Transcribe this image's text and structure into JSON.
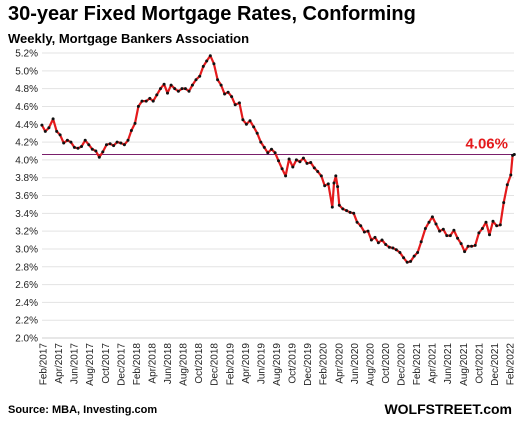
{
  "chart_data": {
    "type": "line",
    "title": "30-year Fixed Mortgage Rates, Conforming",
    "subtitle": "Weekly, Mortgage Bankers Association",
    "source": "Source: MBA, Investing.com",
    "brand": "WOLFSTREET.com",
    "ylim": [
      2.0,
      5.2
    ],
    "yticks": [
      "2.0%",
      "2.2%",
      "2.4%",
      "2.6%",
      "2.8%",
      "3.0%",
      "3.2%",
      "3.4%",
      "3.6%",
      "3.8%",
      "4.0%",
      "4.2%",
      "4.4%",
      "4.6%",
      "4.8%",
      "5.0%",
      "5.2%"
    ],
    "xticks": [
      "Feb/2017",
      "Apr/2017",
      "Jun/2017",
      "Aug/2017",
      "Oct/2017",
      "Dec/2017",
      "Feb/2018",
      "Apr/2018",
      "Jun/2018",
      "Aug/2018",
      "Oct/2018",
      "Dec/2018",
      "Feb/2019",
      "Apr/2019",
      "Jun/2019",
      "Aug/2019",
      "Oct/2019",
      "Dec/2019",
      "Feb/2020",
      "Apr/2020",
      "Jun/2020",
      "Aug/2020",
      "Oct/2020",
      "Dec/2020",
      "Feb/2021",
      "Apr/2021",
      "Jun/2021",
      "Aug/2021",
      "Oct/2021",
      "Dec/2021",
      "Feb/2022"
    ],
    "grid": true,
    "reference_line": {
      "value": 4.06,
      "label": "4.06%",
      "color": "#7a1f6b"
    },
    "series": [
      {
        "color": "#e41a1c",
        "marker_color": "#111111",
        "points": [
          [
            "2017-01-27",
            4.39
          ],
          [
            "2017-02-10",
            4.32
          ],
          [
            "2017-02-24",
            4.36
          ],
          [
            "2017-03-10",
            4.46
          ],
          [
            "2017-03-24",
            4.32
          ],
          [
            "2017-04-07",
            4.28
          ],
          [
            "2017-04-21",
            4.19
          ],
          [
            "2017-05-05",
            4.22
          ],
          [
            "2017-05-19",
            4.2
          ],
          [
            "2017-06-02",
            4.14
          ],
          [
            "2017-06-16",
            4.13
          ],
          [
            "2017-06-30",
            4.15
          ],
          [
            "2017-07-14",
            4.22
          ],
          [
            "2017-07-28",
            4.17
          ],
          [
            "2017-08-11",
            4.12
          ],
          [
            "2017-08-25",
            4.1
          ],
          [
            "2017-09-08",
            4.03
          ],
          [
            "2017-09-22",
            4.09
          ],
          [
            "2017-10-06",
            4.17
          ],
          [
            "2017-10-20",
            4.18
          ],
          [
            "2017-11-03",
            4.16
          ],
          [
            "2017-11-17",
            4.2
          ],
          [
            "2017-12-01",
            4.19
          ],
          [
            "2017-12-15",
            4.17
          ],
          [
            "2017-12-29",
            4.22
          ],
          [
            "2018-01-12",
            4.33
          ],
          [
            "2018-01-26",
            4.41
          ],
          [
            "2018-02-09",
            4.6
          ],
          [
            "2018-02-23",
            4.66
          ],
          [
            "2018-03-09",
            4.66
          ],
          [
            "2018-03-23",
            4.69
          ],
          [
            "2018-04-06",
            4.66
          ],
          [
            "2018-04-20",
            4.73
          ],
          [
            "2018-05-04",
            4.8
          ],
          [
            "2018-05-18",
            4.85
          ],
          [
            "2018-06-01",
            4.75
          ],
          [
            "2018-06-15",
            4.84
          ],
          [
            "2018-06-29",
            4.8
          ],
          [
            "2018-07-13",
            4.77
          ],
          [
            "2018-07-27",
            4.8
          ],
          [
            "2018-08-10",
            4.8
          ],
          [
            "2018-08-24",
            4.77
          ],
          [
            "2018-09-07",
            4.84
          ],
          [
            "2018-09-21",
            4.9
          ],
          [
            "2018-10-05",
            4.94
          ],
          [
            "2018-10-19",
            5.05
          ],
          [
            "2018-11-02",
            5.11
          ],
          [
            "2018-11-16",
            5.17
          ],
          [
            "2018-11-30",
            5.08
          ],
          [
            "2018-12-14",
            4.9
          ],
          [
            "2018-12-28",
            4.84
          ],
          [
            "2019-01-11",
            4.74
          ],
          [
            "2019-01-25",
            4.76
          ],
          [
            "2019-02-08",
            4.71
          ],
          [
            "2019-02-22",
            4.62
          ],
          [
            "2019-03-08",
            4.64
          ],
          [
            "2019-03-22",
            4.45
          ],
          [
            "2019-04-05",
            4.4
          ],
          [
            "2019-04-19",
            4.44
          ],
          [
            "2019-05-03",
            4.37
          ],
          [
            "2019-05-17",
            4.3
          ],
          [
            "2019-05-31",
            4.2
          ],
          [
            "2019-06-14",
            4.14
          ],
          [
            "2019-06-28",
            4.08
          ],
          [
            "2019-07-12",
            4.12
          ],
          [
            "2019-07-26",
            4.08
          ],
          [
            "2019-08-09",
            3.99
          ],
          [
            "2019-08-23",
            3.9
          ],
          [
            "2019-09-06",
            3.82
          ],
          [
            "2019-09-20",
            4.01
          ],
          [
            "2019-10-04",
            3.92
          ],
          [
            "2019-10-18",
            4.0
          ],
          [
            "2019-11-01",
            3.98
          ],
          [
            "2019-11-15",
            4.02
          ],
          [
            "2019-11-29",
            3.96
          ],
          [
            "2019-12-13",
            3.97
          ],
          [
            "2019-12-27",
            3.91
          ],
          [
            "2020-01-10",
            3.87
          ],
          [
            "2020-01-24",
            3.82
          ],
          [
            "2020-02-07",
            3.71
          ],
          [
            "2020-02-21",
            3.73
          ],
          [
            "2020-03-06",
            3.47
          ],
          [
            "2020-03-13",
            3.74
          ],
          [
            "2020-03-20",
            3.82
          ],
          [
            "2020-03-27",
            3.7
          ],
          [
            "2020-04-03",
            3.49
          ],
          [
            "2020-04-17",
            3.45
          ],
          [
            "2020-05-01",
            3.43
          ],
          [
            "2020-05-15",
            3.41
          ],
          [
            "2020-05-29",
            3.4
          ],
          [
            "2020-06-12",
            3.3
          ],
          [
            "2020-06-26",
            3.26
          ],
          [
            "2020-07-10",
            3.19
          ],
          [
            "2020-07-24",
            3.2
          ],
          [
            "2020-08-07",
            3.1
          ],
          [
            "2020-08-21",
            3.13
          ],
          [
            "2020-09-04",
            3.07
          ],
          [
            "2020-09-18",
            3.1
          ],
          [
            "2020-10-02",
            3.05
          ],
          [
            "2020-10-16",
            3.02
          ],
          [
            "2020-10-30",
            3.01
          ],
          [
            "2020-11-13",
            2.99
          ],
          [
            "2020-11-27",
            2.96
          ],
          [
            "2020-12-11",
            2.9
          ],
          [
            "2020-12-25",
            2.85
          ],
          [
            "2021-01-08",
            2.86
          ],
          [
            "2021-01-22",
            2.92
          ],
          [
            "2021-02-05",
            2.96
          ],
          [
            "2021-02-19",
            3.08
          ],
          [
            "2021-03-05",
            3.23
          ],
          [
            "2021-03-19",
            3.3
          ],
          [
            "2021-04-02",
            3.36
          ],
          [
            "2021-04-16",
            3.28
          ],
          [
            "2021-04-30",
            3.2
          ],
          [
            "2021-05-14",
            3.22
          ],
          [
            "2021-05-28",
            3.15
          ],
          [
            "2021-06-11",
            3.15
          ],
          [
            "2021-06-25",
            3.21
          ],
          [
            "2021-07-09",
            3.12
          ],
          [
            "2021-07-23",
            3.06
          ],
          [
            "2021-08-06",
            2.97
          ],
          [
            "2021-08-20",
            3.03
          ],
          [
            "2021-09-03",
            3.03
          ],
          [
            "2021-09-17",
            3.04
          ],
          [
            "2021-10-01",
            3.18
          ],
          [
            "2021-10-15",
            3.23
          ],
          [
            "2021-10-29",
            3.3
          ],
          [
            "2021-11-12",
            3.16
          ],
          [
            "2021-11-26",
            3.31
          ],
          [
            "2021-12-10",
            3.26
          ],
          [
            "2021-12-24",
            3.27
          ],
          [
            "2022-01-07",
            3.52
          ],
          [
            "2022-01-21",
            3.72
          ],
          [
            "2022-02-04",
            3.83
          ],
          [
            "2022-02-11",
            4.05
          ],
          [
            "2022-02-18",
            4.06
          ]
        ]
      }
    ]
  }
}
